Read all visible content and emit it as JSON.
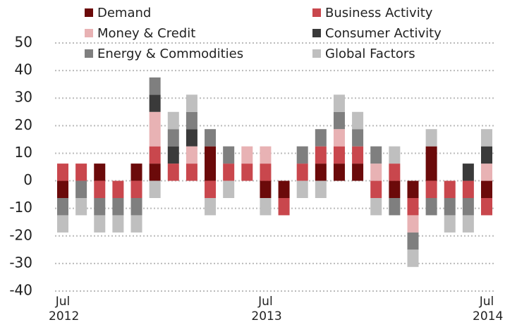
{
  "chart_data": {
    "type": "bar",
    "stacked": true,
    "categories": [
      "Jul 2012",
      null,
      null,
      null,
      null,
      null,
      null,
      null,
      null,
      null,
      null,
      "Jul 2013",
      null,
      null,
      null,
      null,
      null,
      null,
      null,
      null,
      null,
      null,
      null,
      "Jul 2014"
    ],
    "series": [
      {
        "name": "Demand",
        "color": "#6b0a0a",
        "values": [
          -6.25,
          0,
          6.25,
          0,
          6.25,
          6.25,
          0,
          0,
          12.5,
          0,
          0,
          -6.25,
          -6.25,
          0,
          6.25,
          6.25,
          6.25,
          0,
          -6.25,
          -6.25,
          12.5,
          0,
          0,
          -6.25
        ]
      },
      {
        "name": "Business Activity",
        "color": "#c9474d",
        "values": [
          6.25,
          6.25,
          -6.25,
          -6.25,
          -6.25,
          6.25,
          6.25,
          6.25,
          -6.25,
          6.25,
          6.25,
          6.25,
          -6.25,
          6.25,
          6.25,
          6.25,
          6.25,
          -6.25,
          6.25,
          -6.25,
          -6.25,
          -6.25,
          -6.25,
          -6.25
        ]
      },
      {
        "name": "Money & Credit",
        "color": "#e8b2b4",
        "values": [
          0,
          0,
          0,
          0,
          0,
          12.5,
          0,
          6.25,
          0,
          0,
          6.25,
          6.25,
          0,
          0,
          0,
          6.25,
          0,
          6.25,
          0,
          -6.25,
          0,
          0,
          0,
          6.25
        ]
      },
      {
        "name": "Consumer Activity",
        "color": "#3a3a3a",
        "values": [
          0,
          0,
          0,
          0,
          0,
          6.25,
          6.25,
          6.25,
          0,
          0,
          0,
          0,
          0,
          0,
          0,
          0,
          0,
          0,
          0,
          0,
          0,
          0,
          6.25,
          6.25
        ]
      },
      {
        "name": "Energy & Commodities",
        "color": "#7f7f7f",
        "values": [
          -6.25,
          -6.25,
          -6.25,
          -6.25,
          -6.25,
          6.25,
          6.25,
          6.25,
          6.25,
          6.25,
          0,
          0,
          0,
          6.25,
          6.25,
          6.25,
          6.25,
          6.25,
          -6.25,
          -6.25,
          -6.25,
          -6.25,
          -6.25,
          0
        ]
      },
      {
        "name": "Global Factors",
        "color": "#bfbfbf",
        "values": [
          -6.25,
          -6.25,
          -6.25,
          -6.25,
          -6.25,
          -6.25,
          6.25,
          6.25,
          -6.25,
          -6.25,
          0,
          -6.25,
          0,
          -6.25,
          -6.25,
          6.25,
          6.25,
          -6.25,
          6.25,
          -6.25,
          6.25,
          -6.25,
          -6.25,
          6.25
        ]
      }
    ],
    "ylim": [
      -40,
      50
    ],
    "yticks": [
      -40,
      -30,
      -20,
      -10,
      0,
      10,
      20,
      30,
      40,
      50
    ],
    "grid": true
  }
}
